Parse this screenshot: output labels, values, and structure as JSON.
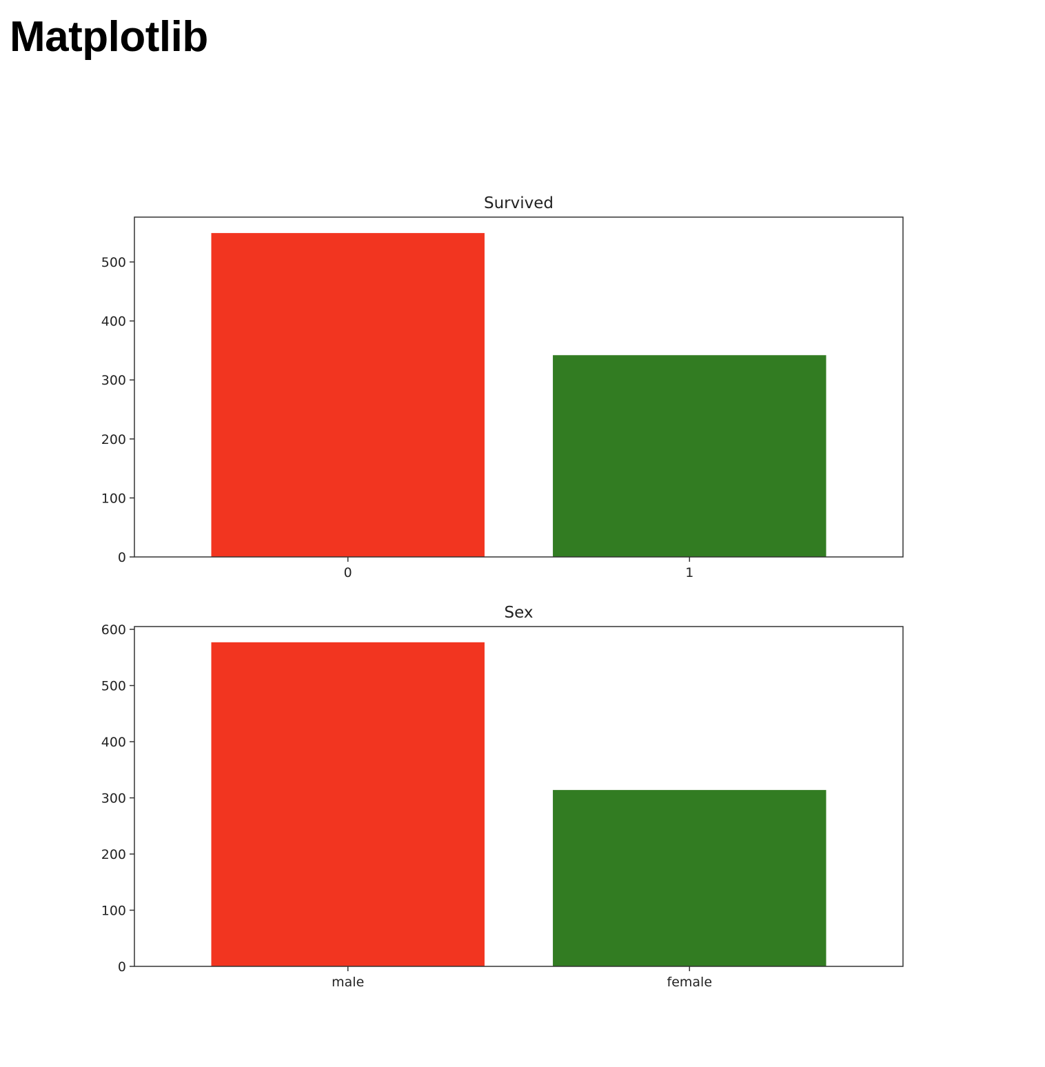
{
  "page": {
    "heading": "Matplotlib"
  },
  "chart_data": [
    {
      "type": "bar",
      "title": "Survived",
      "xlabel": "",
      "ylabel": "",
      "categories": [
        "0",
        "1"
      ],
      "values": [
        549,
        342
      ],
      "bar_colors": [
        "#f23520",
        "#327c22"
      ],
      "ylim": [
        0,
        576
      ],
      "yticks": [
        0,
        100,
        200,
        300,
        400,
        500
      ],
      "grid": false,
      "legend": "none"
    },
    {
      "type": "bar",
      "title": "Sex",
      "xlabel": "",
      "ylabel": "",
      "categories": [
        "male",
        "female"
      ],
      "values": [
        577,
        314
      ],
      "bar_colors": [
        "#f23520",
        "#327c22"
      ],
      "ylim": [
        0,
        605
      ],
      "yticks": [
        0,
        100,
        200,
        300,
        400,
        500,
        600
      ],
      "grid": false,
      "legend": "none"
    }
  ]
}
